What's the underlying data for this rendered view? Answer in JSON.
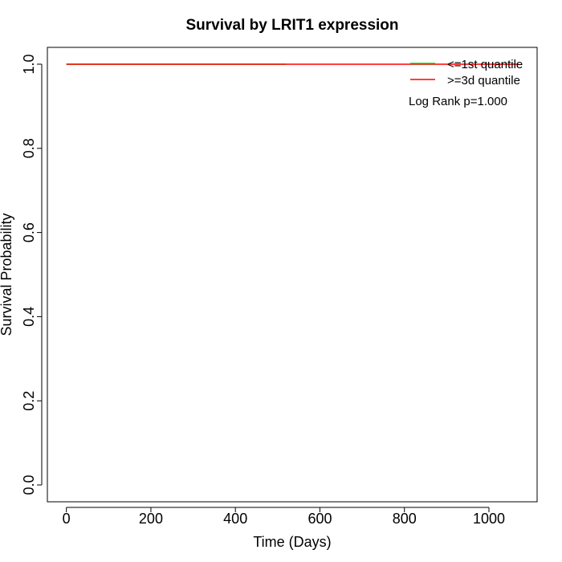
{
  "chart_data": {
    "type": "line",
    "title": "Survival by LRIT1 expression",
    "xlabel": "Time (Days)",
    "ylabel": "Survival Probability",
    "xlim": [
      -45,
      1114
    ],
    "ylim": [
      -0.04,
      1.04
    ],
    "xticks": [
      0,
      200,
      400,
      600,
      800,
      1000
    ],
    "yticks": [
      0.0,
      0.2,
      0.4,
      0.6,
      0.8,
      1.0
    ],
    "x_tick_labels": [
      "0",
      "200",
      "400",
      "600",
      "800",
      "1000"
    ],
    "y_tick_labels": [
      "0.0",
      "0.2",
      "0.4",
      "0.6",
      "0.8",
      "1.0"
    ],
    "grid": false,
    "legend_position": "top-right",
    "series": [
      {
        "name": "<=1st quantile",
        "color": "#00cc00",
        "x": [
          0,
          520
        ],
        "y": [
          1.0,
          1.0
        ]
      },
      {
        "name": ">=3d quantile",
        "color": "#ff0000",
        "x": [
          0,
          1070
        ],
        "y": [
          1.0,
          1.0
        ]
      }
    ],
    "annotation": "Log Rank p=1.000"
  }
}
